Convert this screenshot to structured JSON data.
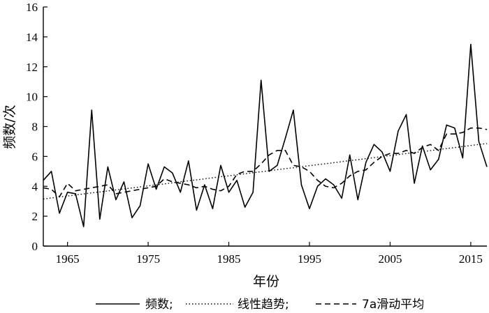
{
  "chart_data": {
    "type": "line",
    "title": "",
    "xlabel": "年份",
    "ylabel": "频数/次",
    "xlim": [
      1962,
      2017
    ],
    "ylim": [
      0,
      16
    ],
    "x_ticks": [
      1965,
      1975,
      1985,
      1995,
      2005,
      2015
    ],
    "y_ticks": [
      0,
      2,
      4,
      6,
      8,
      10,
      12,
      14,
      16
    ],
    "grid": false,
    "legend_position": "bottom",
    "x": [
      1962,
      1963,
      1964,
      1965,
      1966,
      1967,
      1968,
      1969,
      1970,
      1971,
      1972,
      1973,
      1974,
      1975,
      1976,
      1977,
      1978,
      1979,
      1980,
      1981,
      1982,
      1983,
      1984,
      1985,
      1986,
      1987,
      1988,
      1989,
      1990,
      1991,
      1992,
      1993,
      1994,
      1995,
      1996,
      1997,
      1998,
      1999,
      2000,
      2001,
      2002,
      2003,
      2004,
      2005,
      2006,
      2007,
      2008,
      2009,
      2010,
      2011,
      2012,
      2013,
      2014,
      2015,
      2016,
      2017
    ],
    "series": [
      {
        "name": "频数",
        "style": "solid",
        "values": [
          4.4,
          5.0,
          2.2,
          3.6,
          3.5,
          1.3,
          9.1,
          1.8,
          5.3,
          3.1,
          4.3,
          1.9,
          2.7,
          5.5,
          3.8,
          5.3,
          4.9,
          3.6,
          5.7,
          2.4,
          4.1,
          2.5,
          5.4,
          3.6,
          4.4,
          2.6,
          3.6,
          11.1,
          5.0,
          5.4,
          7.2,
          9.1,
          4.1,
          2.5,
          4.0,
          4.5,
          4.1,
          3.2,
          6.1,
          3.1,
          5.6,
          6.8,
          6.3,
          5.0,
          7.7,
          8.8,
          4.2,
          6.7,
          5.1,
          5.8,
          8.1,
          7.9,
          5.9,
          13.5,
          7.0,
          5.3
        ]
      },
      {
        "name": "线性趋势",
        "style": "dotted",
        "values": [
          3.15,
          3.22,
          3.29,
          3.35,
          3.42,
          3.49,
          3.56,
          3.62,
          3.69,
          3.76,
          3.83,
          3.89,
          3.96,
          4.03,
          4.1,
          4.16,
          4.23,
          4.3,
          4.37,
          4.43,
          4.5,
          4.57,
          4.64,
          4.7,
          4.77,
          4.84,
          4.91,
          4.97,
          5.04,
          5.11,
          5.18,
          5.24,
          5.31,
          5.38,
          5.45,
          5.51,
          5.58,
          5.65,
          5.72,
          5.78,
          5.85,
          5.92,
          5.99,
          6.05,
          6.12,
          6.19,
          6.26,
          6.32,
          6.39,
          6.46,
          6.53,
          6.59,
          6.66,
          6.73,
          6.8,
          6.86
        ]
      },
      {
        "name": "7a滑动平均",
        "style": "dashed",
        "values": [
          3.9,
          3.8,
          3.3,
          4.2,
          3.7,
          3.8,
          3.9,
          4.0,
          4.1,
          3.5,
          3.6,
          3.7,
          3.8,
          3.9,
          4.0,
          4.5,
          4.3,
          4.2,
          4.1,
          3.9,
          4.0,
          3.8,
          3.7,
          4.0,
          4.8,
          5.0,
          5.0,
          5.5,
          6.1,
          6.4,
          6.4,
          5.4,
          5.3,
          5.0,
          4.4,
          4.0,
          3.9,
          4.2,
          4.7,
          5.0,
          5.1,
          5.6,
          6.0,
          6.2,
          6.2,
          6.4,
          6.2,
          6.6,
          6.8,
          6.4,
          7.5,
          7.5,
          7.6,
          7.9,
          7.9,
          7.8
        ]
      }
    ]
  },
  "legend": [
    {
      "label": "频数;"
    },
    {
      "label": "线性趋势;"
    },
    {
      "label": "7a滑动平均"
    }
  ]
}
